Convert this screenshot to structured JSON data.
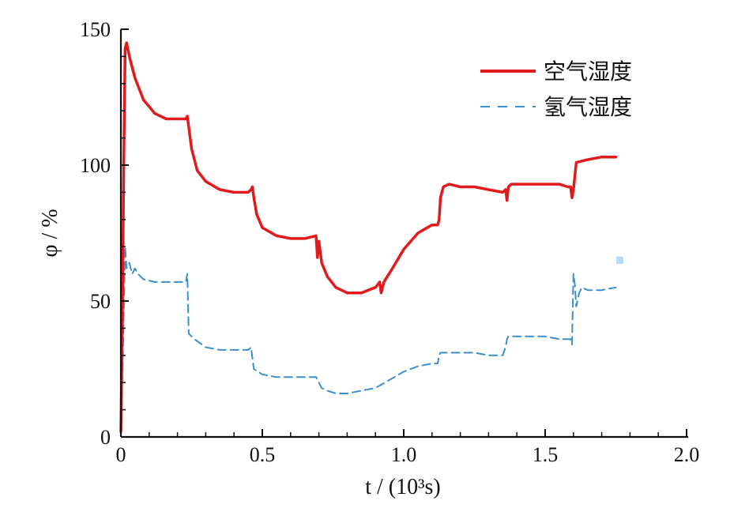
{
  "chart_data": {
    "type": "line",
    "xlabel": "t / (10³s)",
    "ylabel": "φ / %",
    "xlim": [
      0,
      2.0
    ],
    "ylim": [
      0,
      150
    ],
    "x_ticks": [
      "0",
      "0.5",
      "1.0",
      "1.5",
      "2.0"
    ],
    "y_ticks": [
      "0",
      "50",
      "100",
      "150"
    ],
    "grid": false,
    "legend_position": "top-right",
    "series": [
      {
        "name": "空气湿度",
        "color": "#e31a1c",
        "style": "solid",
        "x": [
          0.0,
          0.005,
          0.01,
          0.015,
          0.02,
          0.03,
          0.05,
          0.08,
          0.12,
          0.16,
          0.2,
          0.23,
          0.235,
          0.24,
          0.25,
          0.27,
          0.3,
          0.35,
          0.4,
          0.45,
          0.46,
          0.465,
          0.47,
          0.48,
          0.5,
          0.55,
          0.6,
          0.65,
          0.69,
          0.695,
          0.7,
          0.71,
          0.73,
          0.76,
          0.8,
          0.85,
          0.9,
          0.915,
          0.92,
          0.93,
          0.96,
          1.0,
          1.05,
          1.1,
          1.12,
          1.125,
          1.13,
          1.14,
          1.16,
          1.2,
          1.25,
          1.3,
          1.35,
          1.36,
          1.365,
          1.37,
          1.38,
          1.4,
          1.45,
          1.5,
          1.55,
          1.58,
          1.59,
          1.595,
          1.6,
          1.61,
          1.65,
          1.7,
          1.75
        ],
        "values": [
          2,
          40,
          100,
          143,
          145,
          140,
          132,
          124,
          119,
          117,
          117,
          117,
          118,
          114,
          106,
          98,
          94,
          91,
          90,
          90,
          91,
          92,
          88,
          82,
          77,
          74,
          73,
          73,
          74,
          66,
          72,
          64,
          59,
          55,
          53,
          53,
          55,
          57,
          53,
          57,
          62,
          69,
          75,
          78,
          78,
          80,
          88,
          92,
          93,
          92,
          92,
          91,
          90,
          91,
          87,
          92,
          93,
          93,
          93,
          93,
          93,
          92,
          92,
          88,
          91,
          101,
          102,
          103,
          103
        ]
      },
      {
        "name": "氢气湿度",
        "color": "#3a8fd0",
        "style": "dashed",
        "x": [
          0.0,
          0.005,
          0.01,
          0.015,
          0.02,
          0.03,
          0.04,
          0.05,
          0.06,
          0.08,
          0.12,
          0.16,
          0.2,
          0.23,
          0.235,
          0.24,
          0.26,
          0.3,
          0.35,
          0.4,
          0.45,
          0.46,
          0.465,
          0.47,
          0.5,
          0.55,
          0.6,
          0.65,
          0.69,
          0.7,
          0.71,
          0.73,
          0.76,
          0.8,
          0.85,
          0.9,
          0.95,
          1.0,
          1.05,
          1.1,
          1.12,
          1.125,
          1.13,
          1.15,
          1.2,
          1.25,
          1.3,
          1.35,
          1.36,
          1.365,
          1.37,
          1.4,
          1.45,
          1.5,
          1.55,
          1.58,
          1.59,
          1.595,
          1.6,
          1.605,
          1.61,
          1.62,
          1.63,
          1.65,
          1.7,
          1.75
        ],
        "values": [
          1,
          20,
          45,
          70,
          62,
          64,
          60,
          62,
          60,
          58,
          57,
          57,
          57,
          57,
          60,
          38,
          36,
          33,
          32,
          32,
          32,
          33,
          29,
          25,
          23,
          22,
          22,
          22,
          22,
          20,
          18,
          17,
          16,
          16,
          17,
          18,
          21,
          24,
          26,
          27,
          27,
          30,
          31,
          31,
          31,
          31,
          30,
          30,
          33,
          36,
          37,
          37,
          37,
          37,
          36,
          36,
          36,
          34,
          60,
          56,
          48,
          53,
          55,
          54,
          54,
          55
        ]
      }
    ]
  }
}
